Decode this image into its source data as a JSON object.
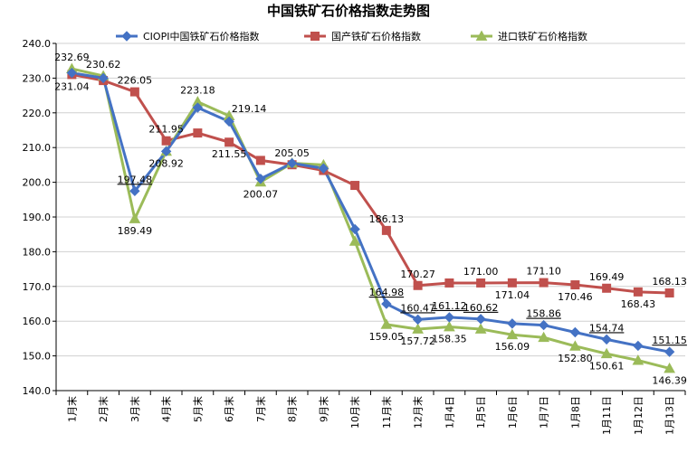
{
  "chart_data": {
    "type": "line",
    "title": "中国铁矿石价格指数走势图",
    "xlabel": "",
    "ylabel": "",
    "ylim": [
      140,
      240
    ],
    "y_ticks": [
      "140.0",
      "150.0",
      "160.0",
      "170.0",
      "180.0",
      "190.0",
      "200.0",
      "210.0",
      "220.0",
      "230.0",
      "240.0"
    ],
    "grid": "horizontal",
    "legend_position": "top",
    "categories": [
      "1月末",
      "2月末",
      "3月末",
      "4月末",
      "5月末",
      "6月末",
      "7月末",
      "8月末",
      "9月末",
      "10月末",
      "11月末",
      "12月末",
      "1月4日",
      "1月5日",
      "1月6日",
      "1月7日",
      "1月8日",
      "1月11日",
      "1月12日",
      "1月13日"
    ],
    "series": [
      {
        "name": "CIOPI中国铁矿石价格指数",
        "color": "#4472C4",
        "marker": "diamond",
        "values": [
          231.5,
          230.0,
          197.48,
          208.92,
          221.5,
          217.5,
          201.0,
          205.5,
          204.0,
          186.5,
          164.98,
          160.47,
          161.12,
          160.62,
          159.3,
          158.86,
          156.8,
          154.74,
          152.9,
          151.15
        ]
      },
      {
        "name": "国产铁矿石价格指数",
        "color": "#C0504D",
        "marker": "square",
        "values": [
          231.04,
          229.3,
          226.05,
          211.95,
          214.2,
          211.55,
          206.3,
          205.05,
          203.4,
          199.1,
          186.13,
          170.27,
          171.0,
          171.0,
          171.04,
          171.1,
          170.46,
          169.49,
          168.43,
          168.13
        ]
      },
      {
        "name": "进口铁矿石价格指数",
        "color": "#9BBB59",
        "marker": "triangle",
        "values": [
          232.69,
          230.62,
          189.49,
          208.92,
          223.18,
          219.14,
          200.07,
          205.5,
          205.0,
          183.0,
          159.05,
          157.72,
          158.35,
          157.72,
          156.09,
          155.3,
          152.8,
          150.61,
          148.7,
          146.39
        ]
      }
    ],
    "data_labels": [
      {
        "text": "232.69",
        "series": 2,
        "index": 0,
        "pos": "above"
      },
      {
        "text": "231.04",
        "series": 1,
        "index": 0,
        "pos": "below"
      },
      {
        "text": "230.62",
        "series": 2,
        "index": 1,
        "pos": "above"
      },
      {
        "text": "226.05",
        "series": 1,
        "index": 2,
        "pos": "above"
      },
      {
        "text": "197.48",
        "series": 0,
        "index": 2,
        "pos": "above",
        "underline": true
      },
      {
        "text": "189.49",
        "series": 2,
        "index": 2,
        "pos": "below"
      },
      {
        "text": "211.95",
        "series": 1,
        "index": 3,
        "pos": "above"
      },
      {
        "text": "208.92",
        "series": 0,
        "index": 3,
        "pos": "below"
      },
      {
        "text": "223.18",
        "series": 2,
        "index": 4,
        "pos": "above"
      },
      {
        "text": "219.14",
        "series": 2,
        "index": 5,
        "pos": "right"
      },
      {
        "text": "211.55",
        "series": 1,
        "index": 5,
        "pos": "below"
      },
      {
        "text": "200.07",
        "series": 2,
        "index": 6,
        "pos": "below"
      },
      {
        "text": "205.05",
        "series": 1,
        "index": 7,
        "pos": "above"
      },
      {
        "text": "186.13",
        "series": 1,
        "index": 10,
        "pos": "above"
      },
      {
        "text": "164.98",
        "series": 0,
        "index": 10,
        "pos": "above",
        "underline": true
      },
      {
        "text": "159.05",
        "series": 2,
        "index": 10,
        "pos": "below"
      },
      {
        "text": "170.27",
        "series": 1,
        "index": 11,
        "pos": "above"
      },
      {
        "text": "160.47",
        "series": 0,
        "index": 11,
        "pos": "above",
        "underline": true
      },
      {
        "text": "157.72",
        "series": 2,
        "index": 11,
        "pos": "below"
      },
      {
        "text": "171.00",
        "series": 1,
        "index": 13,
        "pos": "above"
      },
      {
        "text": "161.12",
        "series": 0,
        "index": 12,
        "pos": "above",
        "underline": true
      },
      {
        "text": "158.35",
        "series": 2,
        "index": 12,
        "pos": "below"
      },
      {
        "text": "160.62",
        "series": 0,
        "index": 13,
        "pos": "above",
        "underline": true
      },
      {
        "text": "171.04",
        "series": 1,
        "index": 14,
        "pos": "below"
      },
      {
        "text": "156.09",
        "series": 2,
        "index": 14,
        "pos": "below"
      },
      {
        "text": "171.10",
        "series": 1,
        "index": 15,
        "pos": "above"
      },
      {
        "text": "158.86",
        "series": 0,
        "index": 15,
        "pos": "above",
        "underline": true
      },
      {
        "text": "170.46",
        "series": 1,
        "index": 16,
        "pos": "below"
      },
      {
        "text": "152.80",
        "series": 2,
        "index": 16,
        "pos": "below"
      },
      {
        "text": "169.49",
        "series": 1,
        "index": 17,
        "pos": "above"
      },
      {
        "text": "154.74",
        "series": 0,
        "index": 17,
        "pos": "above",
        "underline": true
      },
      {
        "text": "150.61",
        "series": 2,
        "index": 17,
        "pos": "below"
      },
      {
        "text": "168.43",
        "series": 1,
        "index": 18,
        "pos": "below"
      },
      {
        "text": "168.13",
        "series": 1,
        "index": 19,
        "pos": "above"
      },
      {
        "text": "151.15",
        "series": 0,
        "index": 19,
        "pos": "above",
        "underline": true
      },
      {
        "text": "146.39",
        "series": 2,
        "index": 19,
        "pos": "below"
      }
    ]
  }
}
